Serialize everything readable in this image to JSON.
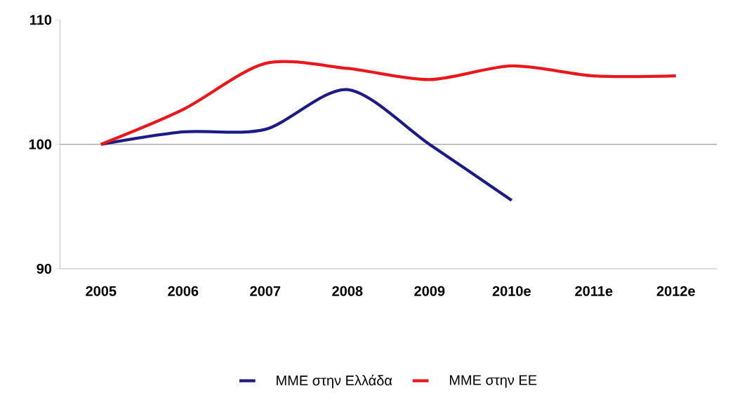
{
  "chart_data": {
    "type": "line",
    "categories": [
      "2005",
      "2006",
      "2007",
      "2008",
      "2009",
      "2010e",
      "2011e",
      "2012e"
    ],
    "series": [
      {
        "name": "ΜΜΕ στην Ελλάδα",
        "color": "#1c1c84",
        "values": [
          100,
          101.0,
          101.2,
          104.4,
          100.0,
          95.5,
          null,
          null
        ]
      },
      {
        "name": "ΜΜΕ στην ΕΕ",
        "color": "#e8181c",
        "values": [
          100,
          102.8,
          106.5,
          106.1,
          105.2,
          106.3,
          105.5,
          105.5
        ]
      }
    ],
    "ylim": [
      90,
      110
    ],
    "yticks": [
      90,
      100,
      110
    ],
    "ref_lines": [
      {
        "axis": "y",
        "value": 100,
        "color": "#a0a0a0"
      }
    ],
    "legend": "bottom"
  }
}
